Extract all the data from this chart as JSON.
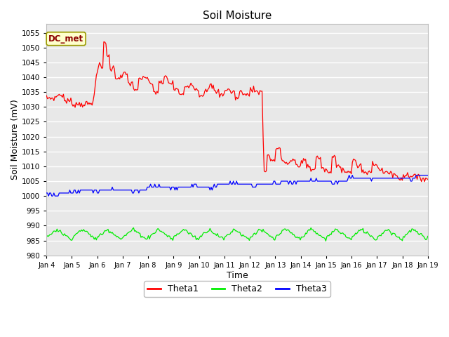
{
  "title": "Soil Moisture",
  "xlabel": "Time",
  "ylabel": "Soil Moisture (mV)",
  "ylim": [
    980,
    1058
  ],
  "yticks": [
    980,
    985,
    990,
    995,
    1000,
    1005,
    1010,
    1015,
    1020,
    1025,
    1030,
    1035,
    1040,
    1045,
    1050,
    1055
  ],
  "xlim_days": [
    4,
    19
  ],
  "xtick_labels": [
    "Jan 4",
    "Jan 5",
    "Jan 6",
    "Jan 7",
    "Jan 8",
    "Jan 9",
    "Jan 10",
    "Jan 11",
    "Jan 12",
    "Jan 13",
    "Jan 14",
    "Jan 15",
    "Jan 16",
    "Jan 17",
    "Jan 18",
    "Jan 19"
  ],
  "plot_bg_color": "#e8e8e8",
  "fig_bg_color": "#ffffff",
  "grid_color": "#ffffff",
  "annotation_text": "DC_met",
  "annotation_bg": "#ffffcc",
  "annotation_border": "#999900",
  "theta1_color": "#ff0000",
  "theta2_color": "#00ee00",
  "theta3_color": "#0000ff",
  "legend_labels": [
    "Theta1",
    "Theta2",
    "Theta3"
  ]
}
